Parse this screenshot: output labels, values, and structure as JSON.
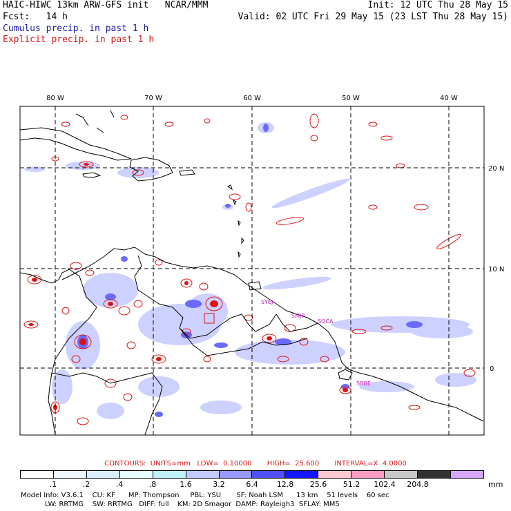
{
  "header": {
    "model_title": "HAIC-HIWC 13km ARW-GFS init   NCAR/MMM",
    "init": "Init: 12 UTC Thu 28 May 15",
    "fcst": "Fcst:   14 h",
    "valid": "Valid: 02 UTC Fri 29 May 15 (23 LST Thu 28 May 15)",
    "cumulus_label": "Cumulus precip. in past 1 h",
    "explicit_label": "Explicit precip. in past 1 h"
  },
  "map": {
    "lon_labels": [
      "80 W",
      "70 W",
      "60 W",
      "50 W",
      "40 W"
    ],
    "lat_labels": [
      "20 N",
      "10 N",
      "0"
    ],
    "stations": [
      "SYEJ",
      "SMJP",
      "SOCA",
      "SBBE"
    ],
    "colors": {
      "coast": "#000000",
      "grid": "#000000",
      "explicit": "#e01010",
      "cumulus": "#6a6aff"
    }
  },
  "contours": {
    "text": "CONTOURS:  UNITS=mm   LOW=  0.10000       HIGH=  25.600       INTERVAL=X  4.0000"
  },
  "colorbar": {
    "units": "mm",
    "ticks": [
      ".1",
      ".2",
      ".4",
      ".8",
      "1.6",
      "3.2",
      "6.4",
      "12.8",
      "25.6",
      "51.2",
      "102.4",
      "204.8"
    ],
    "colors": [
      "#ffffff",
      "#f0f7ff",
      "#dcefff",
      "#e6ffff",
      "#bfeff7",
      "#c3c8ff",
      "#9898ff",
      "#5050ff",
      "#1414ff",
      "#ffc8d2",
      "#ff9cc3",
      "#c8c8c8",
      "#323232",
      "#d8a6ff"
    ]
  },
  "model_info": {
    "line1": "Model Info: V3.6.1    CU: KF      MP: Thompson     PBL: YSU       SF: Noah LSM      13 km    51 levels    60 sec",
    "line2": "           LW: RRTMG    SW: RRTMG   DIFF: full    KM: 2D Smagor  DAMP: Rayleigh3  SFLAY: MM5"
  }
}
